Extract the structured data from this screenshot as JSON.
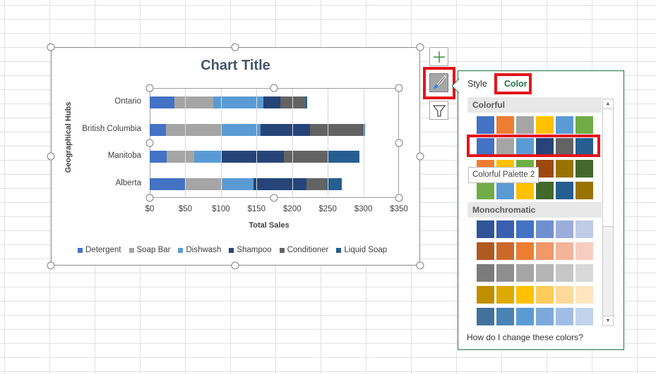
{
  "chart_data": {
    "type": "bar",
    "orientation": "horizontal",
    "stacked": true,
    "title": "Chart Title",
    "xlabel": "Total Sales",
    "ylabel": "Geographical Hubs",
    "categories": [
      "Ontario",
      "British Columbia",
      "Manitoba",
      "Alberta"
    ],
    "x_ticks": [
      "$0",
      "$50",
      "$100",
      "$150",
      "$200",
      "$250",
      "$300",
      "$350"
    ],
    "xlim": [
      0,
      350
    ],
    "grid": true,
    "legend": "bottom",
    "series": [
      {
        "name": "Detergent",
        "color": "#4472c4",
        "values": [
          35,
          23,
          24,
          50
        ]
      },
      {
        "name": "Soap Bar",
        "color": "#a5a5a5",
        "values": [
          54,
          77,
          38,
          52
        ]
      },
      {
        "name": "Dishwash",
        "color": "#5b9bd5",
        "values": [
          71,
          56,
          39,
          44
        ]
      },
      {
        "name": "Shampoo",
        "color": "#264478",
        "values": [
          23,
          69,
          87,
          74
        ]
      },
      {
        "name": "Conditioner",
        "color": "#636363",
        "values": [
          36,
          74,
          63,
          29
        ]
      },
      {
        "name": "Liquid Soap",
        "color": "#255e91",
        "values": [
          2,
          3,
          43,
          21
        ]
      }
    ]
  },
  "side_buttons": {
    "add": "plus-icon",
    "style": "brush-icon",
    "filter": "funnel-icon"
  },
  "panel": {
    "tabs": [
      {
        "label": "Style",
        "active": false
      },
      {
        "label": "Color",
        "active": true
      }
    ],
    "colorful_label": "Colorful",
    "colorful": [
      [
        "#4472c4",
        "#ed7d31",
        "#a5a5a5",
        "#ffc000",
        "#5b9bd5",
        "#70ad47"
      ],
      [
        "#4472c4",
        "#a5a5a5",
        "#5b9bd5",
        "#264478",
        "#636363",
        "#255e91"
      ],
      [
        "#ed7d31",
        "#ffc000",
        "#70ad47",
        "#9e480e",
        "#997300",
        "#43682b"
      ],
      [
        "#70ad47",
        "#5b9bd5",
        "#ffc000",
        "#43682b",
        "#255e91",
        "#997300"
      ]
    ],
    "monochromatic_label": "Monochromatic",
    "monochromatic": [
      [
        "#2f5597",
        "#3a5fae",
        "#4472c4",
        "#6f8fd0",
        "#9daddb",
        "#c0cbe6"
      ],
      [
        "#ae5a21",
        "#cc692a",
        "#ed7d31",
        "#f09869",
        "#f4b49a",
        "#f7cdc0"
      ],
      [
        "#7b7b7b",
        "#8f8f8f",
        "#a5a5a5",
        "#b4b4b4",
        "#c6c6c6",
        "#d9d9d9"
      ],
      [
        "#bf8f00",
        "#dea900",
        "#ffc000",
        "#ffcb5b",
        "#ffd998",
        "#ffe6c0"
      ],
      [
        "#41719c",
        "#4a82b4",
        "#5b9bd5",
        "#7ba9dc",
        "#a0bee4",
        "#c2d4ec"
      ]
    ],
    "tooltip": "Colorful Palette 2",
    "help_link": "How do I change these colors?"
  },
  "highlight_color": "#e3151b"
}
